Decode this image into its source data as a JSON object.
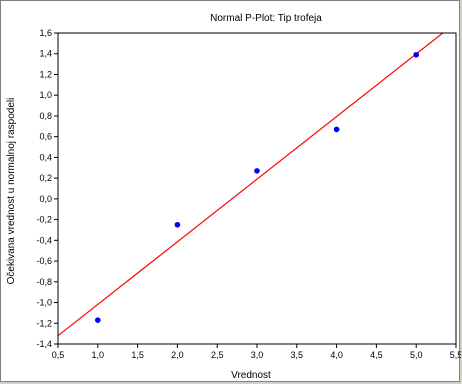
{
  "chart_data": {
    "type": "scatter",
    "title": "Normal P-Plot: Tip trofeja",
    "xlabel": "Vrednost",
    "ylabel": "Očekivana vrednost u normalnoj raspodeli",
    "xlim": [
      0.5,
      5.5
    ],
    "ylim": [
      -1.4,
      1.6
    ],
    "x_ticks": [
      "0,5",
      "1,0",
      "1,5",
      "2,0",
      "2,5",
      "3,0",
      "3,5",
      "4,0",
      "4,5",
      "5,0",
      "5,5"
    ],
    "y_ticks": [
      "1,6",
      "1,4",
      "1,2",
      "1,0",
      "0,8",
      "0,6",
      "0,4",
      "0,2",
      "0,0",
      "-0,2",
      "-0,4",
      "-0,6",
      "-0,8",
      "-1,0",
      "-1,2",
      "-1,4"
    ],
    "grid": false,
    "points": [
      {
        "x": 1.0,
        "y": -1.17
      },
      {
        "x": 2.0,
        "y": -0.25
      },
      {
        "x": 3.0,
        "y": 0.27
      },
      {
        "x": 4.0,
        "y": 0.67
      },
      {
        "x": 5.0,
        "y": 1.39
      }
    ],
    "reference_line": {
      "x": [
        0.5,
        5.5
      ],
      "y": [
        -1.32,
        1.7
      ]
    },
    "colors": {
      "points": "#0000ff",
      "line": "#ff0000",
      "axis": "#000000"
    }
  }
}
